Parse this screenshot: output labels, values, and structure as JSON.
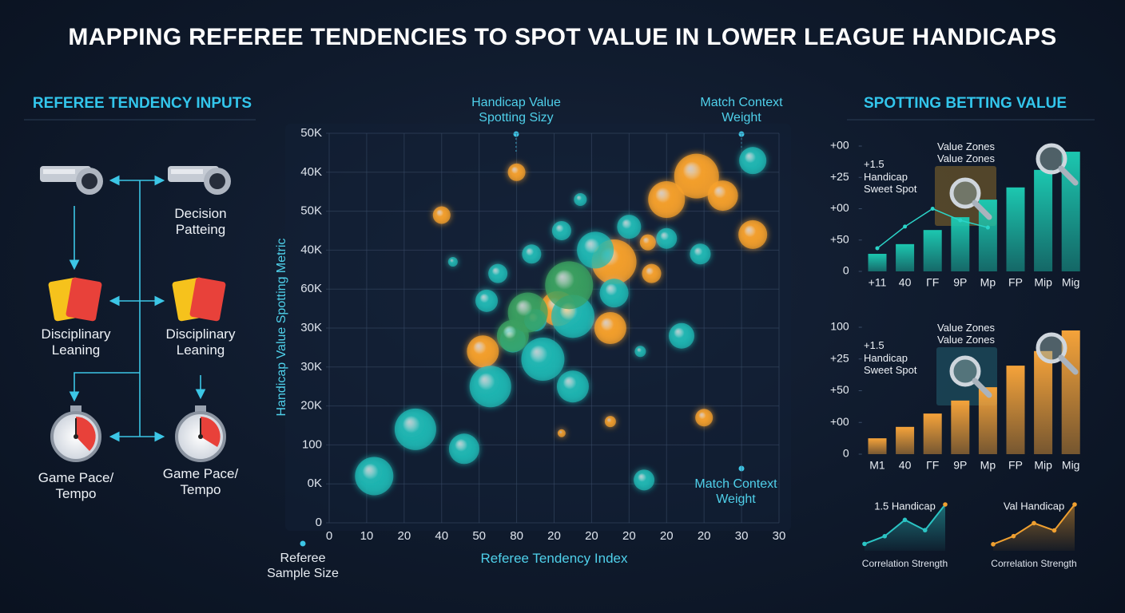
{
  "title": "MAPPING REFEREE TENDENCIES TO SPOT VALUE IN LOWER LEAGUE HANDICAPS",
  "inputs": {
    "title": "REFEREE TENDENCY INPUTS",
    "labels": [
      "Decision\nPatteing",
      "Disciplinary\nLeaning",
      "Disciplinary\nLeaning",
      "Game Pace/\nTempo",
      "Game Pace/\nTempo"
    ]
  },
  "value_panel": {
    "title": "SPOTTING BETTING VALUE"
  },
  "chart_data": [
    {
      "type": "scatter",
      "x_label": "Referee Tendency Index",
      "y_label": "Handicap Value Spotting Metric",
      "annotations": [
        "Handicap Value\nSpotting Sizy",
        "Match Context\nWeight",
        "Match Context\nWeight",
        "Referee\nSample Size"
      ],
      "xlim": [
        0,
        12
      ],
      "xticks": [
        0,
        {
          "value": 1,
          "label": "10"
        },
        {
          "value": 2,
          "label": "20"
        },
        {
          "value": 3,
          "label": "40"
        },
        {
          "value": 4,
          "label": "50"
        },
        {
          "value": 5,
          "label": "80"
        },
        {
          "value": 6,
          "label": "20"
        },
        {
          "value": 7,
          "label": "20"
        },
        {
          "value": 8,
          "label": "20"
        },
        {
          "value": 9,
          "label": "20"
        },
        {
          "value": 10,
          "label": "20"
        },
        {
          "value": 11,
          "label": "30"
        },
        {
          "value": 12,
          "label": "30"
        }
      ],
      "ylim": [
        0,
        10
      ],
      "yticks": [
        0,
        {
          "value": 1,
          "label": "0K"
        },
        {
          "value": 2,
          "label": "100"
        },
        {
          "value": 3,
          "label": "20K"
        },
        {
          "value": 4,
          "label": "30K"
        },
        {
          "value": 5,
          "label": "30K"
        },
        {
          "value": 6,
          "label": "60K"
        },
        {
          "value": 7,
          "label": "40K"
        },
        {
          "value": 8,
          "label": "50K"
        },
        {
          "value": 9,
          "label": "40K"
        },
        {
          "value": 10,
          "label": "50K"
        }
      ],
      "grid": true,
      "series": [
        {
          "color": "#f7a12b",
          "x": [
            5.0,
            3.0,
            9.8,
            10.5,
            9.0,
            11.3,
            7.6,
            8.5,
            8.6,
            6.1,
            4.1,
            7.5,
            7.5,
            10.0,
            6.2
          ],
          "y": [
            9.0,
            7.9,
            8.9,
            8.4,
            8.3,
            7.4,
            6.7,
            7.2,
            6.4,
            5.5,
            4.4,
            5.0,
            2.6,
            2.7,
            2.3
          ],
          "sizes": [
            11,
            11,
            28,
            19,
            23,
            18,
            28,
            10,
            12,
            22,
            20,
            20,
            7,
            11,
            5
          ]
        },
        {
          "color": "#1fb8b4",
          "x": [
            11.3,
            6.7,
            8.0,
            6.2,
            9.0,
            5.4,
            9.9,
            3.3,
            4.5,
            7.1,
            7.6,
            4.2,
            5.5,
            6.5,
            9.4,
            5.7,
            4.9,
            8.3,
            4.3,
            6.5,
            2.3,
            3.6,
            1.2,
            8.4
          ],
          "y": [
            9.3,
            8.3,
            7.6,
            7.5,
            7.3,
            6.9,
            6.9,
            6.7,
            6.4,
            7.0,
            5.9,
            5.7,
            5.2,
            5.3,
            4.8,
            4.2,
            4.7,
            4.4,
            3.5,
            3.5,
            2.4,
            1.9,
            1.2,
            1.1
          ],
          "sizes": [
            17,
            8,
            15,
            12,
            13,
            12,
            13,
            6,
            12,
            23,
            18,
            14,
            14,
            27,
            16,
            27,
            16,
            7,
            26,
            20,
            26,
            19,
            24,
            13
          ]
        },
        {
          "color": "#3aa060",
          "x": [
            6.4,
            5.3,
            4.9
          ],
          "y": [
            6.1,
            5.4,
            4.8
          ],
          "sizes": [
            30,
            25,
            20
          ]
        }
      ]
    },
    {
      "type": "bar",
      "categories": [
        "+11",
        "40",
        "ΓF",
        "9P",
        "Mp",
        "FP",
        "Mip",
        "Mig"
      ],
      "values": [
        0.56,
        0.87,
        1.32,
        1.73,
        2.29,
        2.68,
        3.24,
        3.82
      ],
      "color": "#1cc7b0",
      "ylim": [
        0,
        4
      ],
      "yticks": [
        0,
        {
          "value": 1,
          "label": "+50"
        },
        {
          "value": 2,
          "label": "+00"
        },
        {
          "value": 3,
          "label": "+25"
        },
        {
          "value": 4,
          "label": "+00"
        }
      ],
      "annotations": [
        "Value Zones",
        "Value Zones",
        "+1.5\nHandicap\nSweet Spot"
      ],
      "line": {
        "color": "#2bd4c8",
        "values": [
          0.74,
          1.43,
          2.0,
          1.63,
          1.4,
          null,
          null,
          null
        ]
      }
    },
    {
      "type": "bar",
      "categories": [
        "M1",
        "40",
        "ΓF",
        "9P",
        "Mp",
        "FP",
        "Mip",
        "Mig"
      ],
      "values": [
        0.5,
        0.86,
        1.28,
        1.69,
        2.11,
        2.79,
        3.25,
        3.9
      ],
      "color": "#f5a33a",
      "ylim": [
        0,
        4
      ],
      "yticks": [
        0,
        {
          "value": 1,
          "label": "+00"
        },
        {
          "value": 2,
          "label": "+50"
        },
        {
          "value": 3,
          "label": "+25"
        },
        {
          "value": 4,
          "label": "100"
        }
      ],
      "annotations": [
        "Value Zones",
        "Value Zones",
        "+1.5\nHandicap\nSweet Spot"
      ]
    },
    {
      "type": "line",
      "title": "1.5 Handicap",
      "x_label": "Correlation Strength",
      "values": [
        8,
        17,
        36,
        24,
        54
      ],
      "color": "#2bc4c4"
    },
    {
      "type": "line",
      "title": "Val Handicap",
      "x_label": "Correlation Strength",
      "values": [
        8,
        18,
        34,
        25,
        57
      ],
      "color": "#f0a030"
    }
  ]
}
